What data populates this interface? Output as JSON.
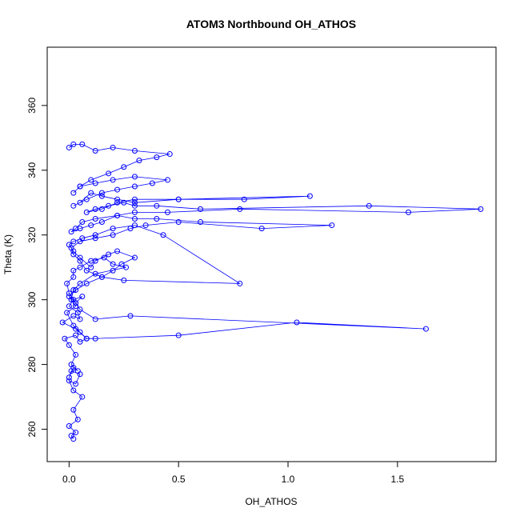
{
  "chart_data": {
    "type": "scatter",
    "title": "ATOM3 Northbound OH_ATHOS",
    "xlabel": "OH_ATHOS",
    "ylabel": "Theta (K)",
    "xlim": [
      -0.1,
      1.95
    ],
    "ylim": [
      250,
      378
    ],
    "xticks": [
      0.0,
      0.5,
      1.0,
      1.5
    ],
    "xtick_labels": [
      "0.0",
      "0.5",
      "1.0",
      "1.5"
    ],
    "yticks": [
      260,
      280,
      300,
      320,
      340,
      360
    ],
    "ytick_labels": [
      "260",
      "280",
      "300",
      "320",
      "340",
      "360"
    ],
    "point_color": "#0000ff",
    "connected": true,
    "marker": "open-circle",
    "series": [
      {
        "x": [
          0.02,
          0.01,
          0.03,
          0.0,
          0.04,
          0.02,
          0.06,
          0.02,
          0.0,
          0.03,
          0.05,
          0.01,
          0.0,
          0.02,
          0.04,
          0.01,
          0.03,
          0.0,
          -0.02,
          0.03,
          0.05,
          0.08,
          0.03,
          -0.03,
          0.02,
          0.05,
          0.04,
          0.0,
          0.02,
          0.06,
          0.03,
          0.0,
          -0.01,
          0.02,
          0.02,
          0.05,
          0.1,
          0.16,
          0.2,
          0.26,
          0.12,
          0.05,
          0.02,
          0.01,
          0.03,
          -0.01,
          0.02,
          0.05,
          0.08,
          0.12,
          0.5,
          1.04,
          1.63,
          0.28,
          0.12,
          0.05,
          0.03,
          0.0,
          0.03,
          0.08,
          0.15,
          0.2,
          0.24,
          0.3,
          0.22,
          0.18,
          0.12,
          0.1,
          0.05,
          0.02,
          0.0,
          0.02,
          0.06,
          0.12,
          0.2,
          0.3,
          0.43,
          0.78,
          0.25,
          0.15,
          0.08,
          0.05,
          0.02,
          0.01,
          0.05,
          0.12,
          0.2,
          0.28,
          0.35,
          0.5,
          0.88,
          1.2,
          0.6,
          0.4,
          0.3,
          0.22,
          0.12,
          0.06,
          0.03,
          0.01,
          0.05,
          0.1,
          0.15,
          0.22,
          0.3,
          0.45,
          0.78,
          1.55,
          1.88,
          1.37,
          0.6,
          0.4,
          0.3,
          0.25,
          0.18,
          0.12,
          0.08,
          0.15,
          0.22,
          0.3,
          0.5,
          0.8,
          1.1,
          0.5,
          0.3,
          0.22,
          0.15,
          0.1,
          0.05,
          0.02,
          0.08,
          0.15,
          0.22,
          0.3,
          0.38,
          0.45,
          0.3,
          0.2,
          0.12,
          0.05,
          0.02,
          0.05,
          0.1,
          0.18,
          0.25,
          0.32,
          0.4,
          0.46,
          0.3,
          0.2,
          0.12,
          0.06,
          0.02,
          0.0
        ],
        "y": [
          257,
          258,
          259,
          261,
          263,
          266,
          270,
          272,
          275,
          274,
          277,
          278,
          276,
          279,
          278,
          280,
          283,
          286,
          288,
          289,
          287,
          288,
          291,
          293,
          295,
          294,
          296,
          298,
          300,
          301,
          299,
          302,
          305,
          307,
          309,
          310,
          312,
          313,
          311,
          310,
          308,
          305,
          303,
          300,
          298,
          296,
          292,
          290,
          288,
          288,
          289,
          293,
          291,
          295,
          294,
          297,
          299,
          301,
          303,
          305,
          307,
          309,
          311,
          313,
          315,
          314,
          312,
          310,
          313,
          315,
          317,
          318,
          319,
          320,
          322,
          323,
          320,
          305,
          306,
          307,
          309,
          312,
          314,
          316,
          318,
          319,
          320,
          322,
          323,
          324,
          322,
          323,
          324,
          325,
          325,
          326,
          325,
          324,
          322,
          321,
          322,
          323,
          324,
          326,
          327,
          327,
          328,
          327,
          328,
          329,
          328,
          329,
          329,
          330,
          329,
          328,
          327,
          328,
          330,
          331,
          331,
          331,
          332,
          331,
          330,
          331,
          332,
          333,
          330,
          329,
          331,
          333,
          334,
          335,
          336,
          337,
          338,
          337,
          336,
          335,
          333,
          335,
          337,
          339,
          341,
          343,
          344,
          345,
          346,
          347,
          346,
          348,
          348,
          347
        ]
      }
    ]
  }
}
